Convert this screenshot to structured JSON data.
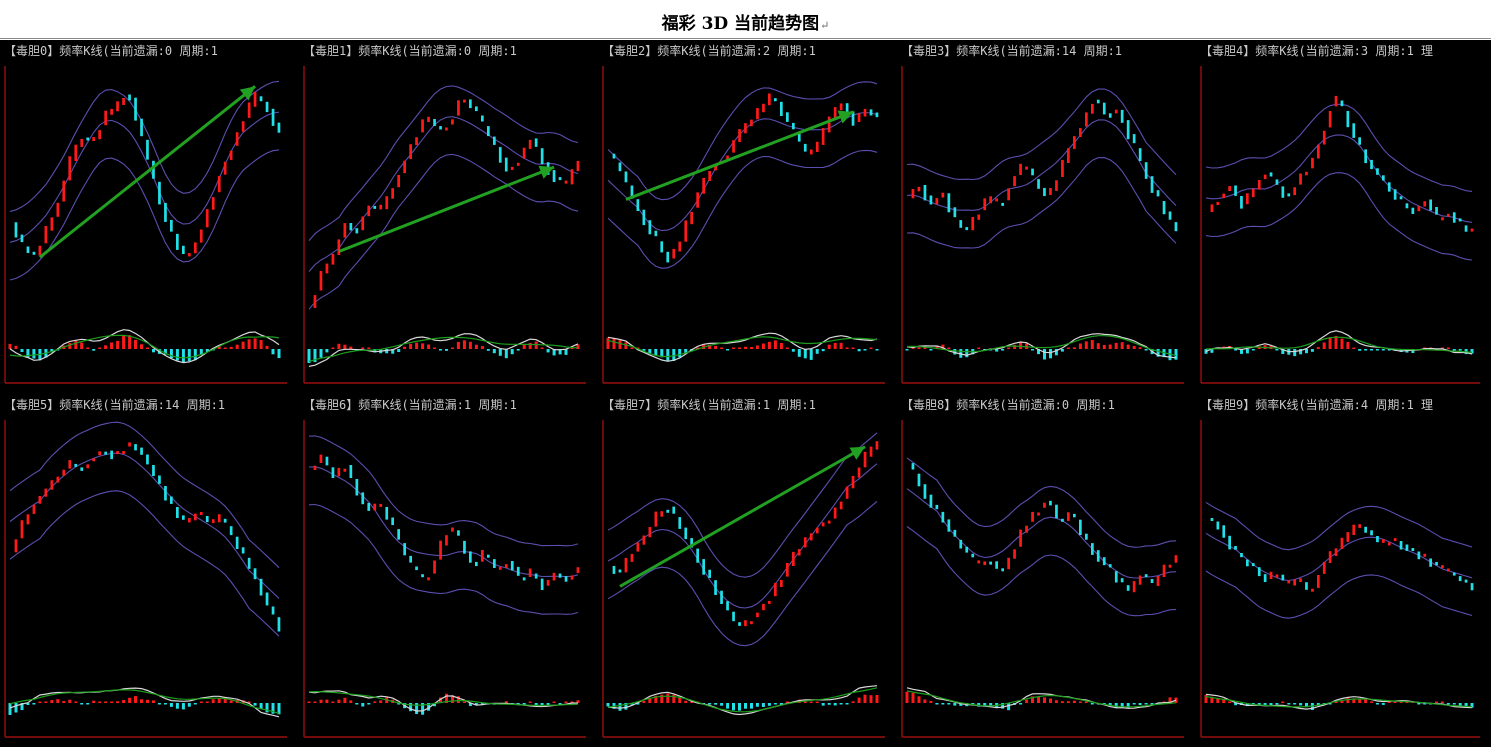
{
  "document": {
    "title": "福彩 3D 当前趋势图",
    "return_mark": "↵"
  },
  "colors": {
    "background": "#000000",
    "up_bar": "#ff1a1a",
    "down_bar": "#22e0e8",
    "band": "#5a4fb0",
    "frame": "#9a0f0f",
    "osc_white": "#d8d8d8",
    "osc_green": "#1c9e1c",
    "arrow": "#22a022"
  },
  "chart_data": [
    {
      "type": "line",
      "title": "【毒胆0】频率K线(当前遗漏:0 周期:1",
      "series": [
        {
          "values": [
            55,
            48,
            45,
            52,
            60,
            72,
            80,
            78,
            86,
            88,
            94,
            82,
            70,
            58,
            50,
            44,
            50,
            60,
            70,
            78,
            86,
            92,
            88,
            80
          ]
        }
      ],
      "trend_arrow": true,
      "arrow_range": [
        0.1,
        0.92
      ]
    },
    {
      "type": "line",
      "title": "【毒胆1】频率K线(当前遗漏:0 周期:1",
      "series": [
        {
          "values": [
            30,
            40,
            45,
            55,
            52,
            60,
            58,
            64,
            72,
            80,
            86,
            82,
            84,
            92,
            88,
            82,
            76,
            70,
            74,
            80,
            72,
            68,
            66,
            74
          ]
        }
      ],
      "trend_arrow": true,
      "arrow_range": [
        0.12,
        0.9
      ]
    },
    {
      "type": "line",
      "title": "【毒胆2】频率K线(当前遗漏:2 周期:1",
      "series": [
        {
          "values": [
            75,
            70,
            62,
            56,
            50,
            44,
            48,
            58,
            66,
            72,
            74,
            80,
            84,
            88,
            92,
            86,
            80,
            74,
            78,
            86,
            90,
            84,
            88,
            86
          ]
        }
      ],
      "trend_arrow": true,
      "arrow_range": [
        0.06,
        0.92
      ]
    },
    {
      "type": "line",
      "title": "【毒胆3】频率K线(当前遗漏:14 周期:1",
      "series": [
        {
          "values": [
            62,
            66,
            60,
            64,
            56,
            52,
            58,
            62,
            60,
            68,
            72,
            66,
            62,
            70,
            78,
            84,
            92,
            86,
            88,
            80,
            72,
            64,
            58,
            52
          ]
        }
      ],
      "trend_arrow": false
    },
    {
      "type": "line",
      "title": "【毒胆4】频率K线(当前遗漏:3 周期:1 理",
      "series": [
        {
          "values": [
            58,
            62,
            66,
            60,
            64,
            70,
            66,
            62,
            68,
            72,
            80,
            92,
            86,
            78,
            72,
            68,
            64,
            60,
            58,
            62,
            56,
            58,
            54,
            52
          ]
        }
      ],
      "trend_arrow": false
    },
    {
      "type": "line",
      "title": "【毒胆5】频率K线(当前遗漏:14 周期:1",
      "series": [
        {
          "values": [
            62,
            70,
            76,
            80,
            84,
            88,
            86,
            90,
            92,
            90,
            94,
            92,
            86,
            80,
            74,
            70,
            74,
            70,
            72,
            66,
            60,
            54,
            46,
            40
          ]
        }
      ],
      "trend_arrow": false
    },
    {
      "type": "line",
      "title": "【毒胆6】频率K线(当前遗漏:1 周期:1",
      "series": [
        {
          "values": [
            86,
            90,
            84,
            88,
            80,
            74,
            76,
            70,
            62,
            56,
            54,
            62,
            70,
            64,
            58,
            62,
            56,
            60,
            54,
            56,
            52,
            56,
            54,
            58
          ]
        }
      ],
      "trend_arrow": false
    },
    {
      "type": "line",
      "title": "【毒胆7】频率K线(当前遗漏:1 周期:1",
      "series": [
        {
          "values": [
            58,
            56,
            62,
            66,
            72,
            76,
            70,
            64,
            58,
            52,
            46,
            40,
            42,
            46,
            50,
            56,
            62,
            66,
            70,
            72,
            78,
            84,
            90,
            94
          ]
        }
      ],
      "trend_arrow": true,
      "arrow_range": [
        0.05,
        0.95
      ]
    },
    {
      "type": "line",
      "title": "【毒胆8】频率K线(当前遗漏:0 周期:1",
      "series": [
        {
          "values": [
            88,
            82,
            76,
            72,
            66,
            62,
            58,
            60,
            56,
            62,
            70,
            74,
            78,
            70,
            74,
            66,
            62,
            58,
            54,
            50,
            56,
            52,
            58,
            60
          ]
        }
      ],
      "trend_arrow": false
    },
    {
      "type": "line",
      "title": "【毒胆9】频率K线(当前遗漏:4 周期:1 理",
      "series": [
        {
          "values": [
            72,
            70,
            64,
            60,
            58,
            54,
            56,
            52,
            54,
            50,
            58,
            62,
            66,
            70,
            68,
            64,
            66,
            64,
            62,
            60,
            58,
            56,
            54,
            52
          ]
        }
      ],
      "trend_arrow": false
    }
  ]
}
